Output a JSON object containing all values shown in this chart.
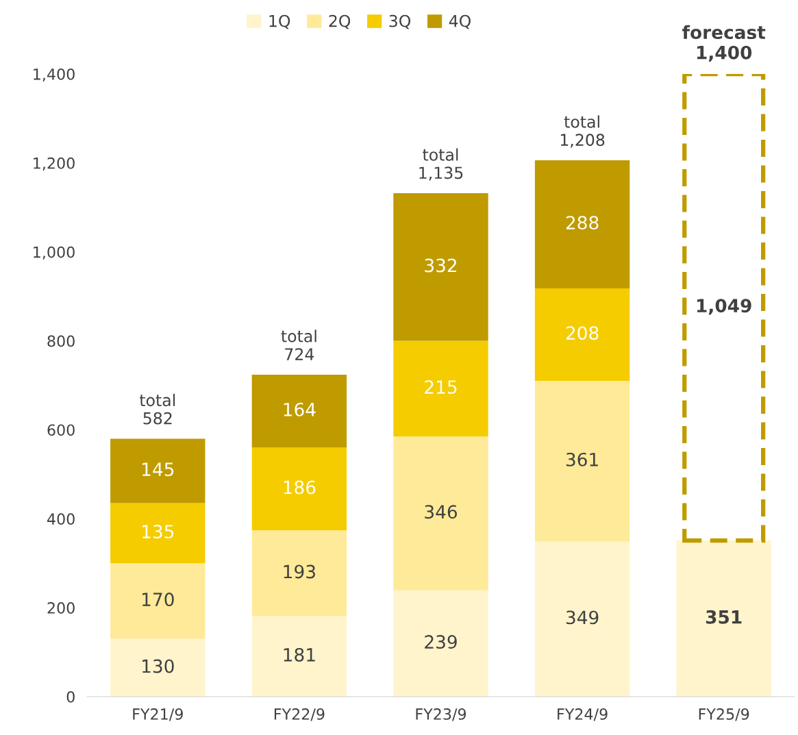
{
  "chart_data": {
    "type": "bar",
    "stacked": true,
    "categories": [
      "FY21/9",
      "FY22/9",
      "FY23/9",
      "FY24/9",
      "FY25/9"
    ],
    "series": [
      {
        "name": "1Q",
        "color": "#fff4cc",
        "values": [
          130,
          181,
          239,
          349,
          351
        ]
      },
      {
        "name": "2Q",
        "color": "#ffea99",
        "values": [
          170,
          193,
          346,
          361,
          null
        ]
      },
      {
        "name": "3Q",
        "color": "#f5cc00",
        "values": [
          135,
          186,
          215,
          208,
          null
        ]
      },
      {
        "name": "4Q",
        "color": "#bf9b00",
        "values": [
          145,
          164,
          332,
          288,
          null
        ]
      },
      {
        "color": "#bf9b00",
        "line_style": "dashed",
        "values": [
          null,
          null,
          null,
          null,
          1049
        ],
        "value_labels": [
          null,
          null,
          null,
          null,
          "1,049"
        ]
      }
    ],
    "data_labels": true,
    "totals": [
      "total\n582",
      "total\n724",
      "total\n1,135",
      "total\n1,208",
      "forecast\n1,400"
    ],
    "ylim": [
      0,
      1400
    ],
    "yticks": [
      0,
      {
        "value": 200,
        "label": "200"
      },
      {
        "value": 400,
        "label": "400"
      },
      {
        "value": 600,
        "label": "600"
      },
      {
        "value": 800,
        "label": "800"
      },
      {
        "value": 1000,
        "label": "1,000"
      },
      {
        "value": 1200,
        "label": "1,200"
      },
      {
        "value": 1400,
        "label": "1,400"
      }
    ],
    "grid": false,
    "legend": "top"
  }
}
